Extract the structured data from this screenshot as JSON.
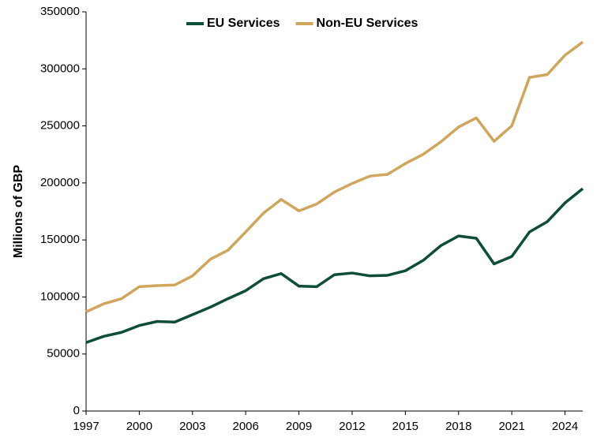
{
  "chart_data": {
    "type": "line",
    "y_label": "Millions of GBP",
    "x": [
      1997,
      1998,
      1999,
      2000,
      2001,
      2002,
      2003,
      2004,
      2005,
      2006,
      2007,
      2008,
      2009,
      2010,
      2011,
      2012,
      2013,
      2014,
      2015,
      2016,
      2017,
      2018,
      2019,
      2020,
      2021,
      2022,
      2023,
      2024,
      2025
    ],
    "series": [
      {
        "name": "EU Services",
        "color": "#0d4d3a",
        "values": [
          60000,
          65500,
          69000,
          75000,
          78500,
          78000,
          84500,
          91000,
          98500,
          105500,
          116000,
          120500,
          109500,
          109000,
          119500,
          121000,
          118500,
          119000,
          123000,
          132000,
          145000,
          153500,
          151500,
          129000,
          135500,
          157000,
          166000,
          182500,
          195000
        ]
      },
      {
        "name": "Non-EU Services",
        "color": "#cfa65c",
        "values": [
          87000,
          94000,
          98500,
          109000,
          110000,
          110500,
          118500,
          133000,
          141000,
          157000,
          173500,
          185500,
          175500,
          181500,
          192000,
          199500,
          206000,
          207500,
          217000,
          225000,
          236000,
          249000,
          257000,
          236500,
          250000,
          292500,
          295000,
          312000,
          323500
        ]
      }
    ],
    "xlim": [
      1997,
      2025
    ],
    "xticks": [
      1997,
      2000,
      2003,
      2006,
      2009,
      2012,
      2015,
      2018,
      2021,
      2024
    ],
    "ylim": [
      0,
      350000
    ],
    "yticks": [
      0,
      50000,
      100000,
      150000,
      200000,
      250000,
      300000,
      350000
    ],
    "grid": false,
    "legend": "top"
  }
}
